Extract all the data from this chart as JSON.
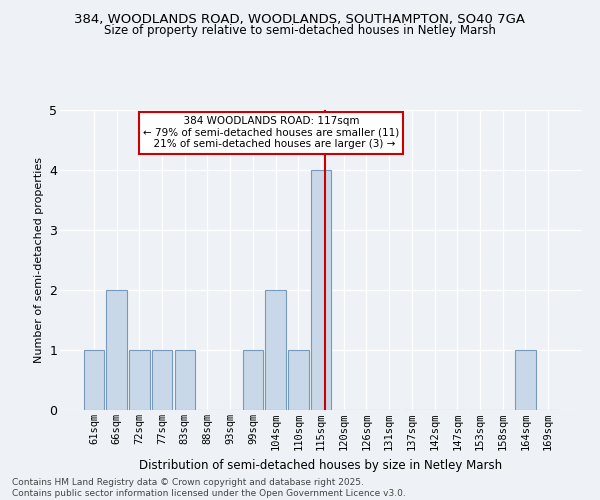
{
  "title1": "384, WOODLANDS ROAD, WOODLANDS, SOUTHAMPTON, SO40 7GA",
  "title2": "Size of property relative to semi-detached houses in Netley Marsh",
  "xlabel": "Distribution of semi-detached houses by size in Netley Marsh",
  "ylabel": "Number of semi-detached properties",
  "categories": [
    "61sqm",
    "66sqm",
    "72sqm",
    "77sqm",
    "83sqm",
    "88sqm",
    "93sqm",
    "99sqm",
    "104sqm",
    "110sqm",
    "115sqm",
    "120sqm",
    "126sqm",
    "131sqm",
    "137sqm",
    "142sqm",
    "147sqm",
    "153sqm",
    "158sqm",
    "164sqm",
    "169sqm"
  ],
  "values": [
    1,
    2,
    1,
    1,
    1,
    0,
    0,
    1,
    2,
    1,
    4,
    0,
    0,
    0,
    0,
    0,
    0,
    0,
    0,
    1,
    0
  ],
  "bar_color": "#c8d8e8",
  "bar_edge_color": "#7799bb",
  "subject_line_idx": 10,
  "subject_label": "384 WOODLANDS ROAD: 117sqm",
  "pct_smaller": 79,
  "count_smaller": 11,
  "pct_larger": 21,
  "count_larger": 3,
  "annotation_box_color": "#cc0000",
  "ylim": [
    0,
    5
  ],
  "yticks": [
    0,
    1,
    2,
    3,
    4,
    5
  ],
  "footer1": "Contains HM Land Registry data © Crown copyright and database right 2025.",
  "footer2": "Contains public sector information licensed under the Open Government Licence v3.0.",
  "bg_color": "#eef2f7",
  "grid_color": "#ffffff",
  "title1_fontsize": 9.5,
  "title2_fontsize": 8.5,
  "ylabel_fontsize": 8.0,
  "xlabel_fontsize": 8.5,
  "tick_fontsize": 7.5,
  "footer_fontsize": 6.5
}
